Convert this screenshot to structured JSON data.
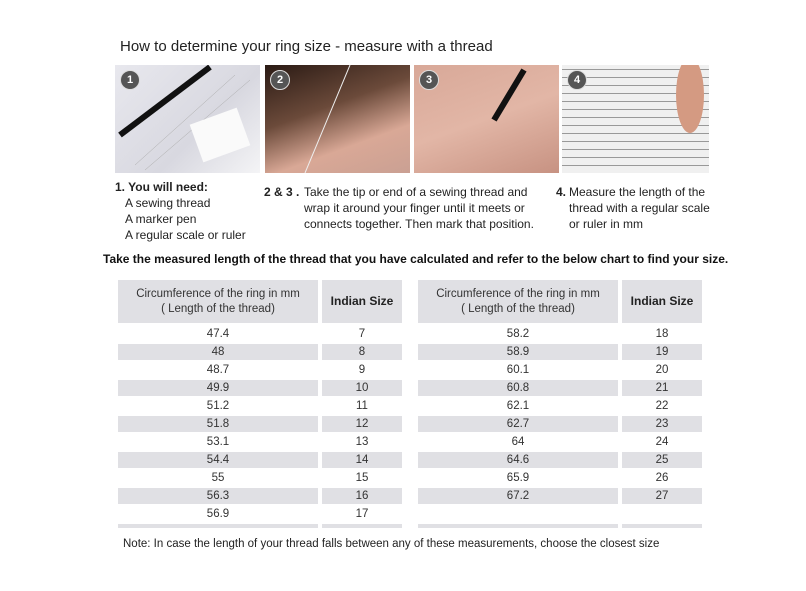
{
  "title": "How to determine your ring size - measure with a thread",
  "photos": [
    {
      "step": "1",
      "alt": "ruler, pen and thread"
    },
    {
      "step": "2",
      "alt": "wrapping thread around finger"
    },
    {
      "step": "3",
      "alt": "marking thread with pen"
    },
    {
      "step": "4",
      "alt": "measuring thread on ruler"
    }
  ],
  "steps": {
    "one": {
      "heading": "1. You will need:",
      "items": [
        "A sewing thread",
        "A marker pen",
        "A regular scale or ruler"
      ]
    },
    "two_three": {
      "label": "2 & 3 .",
      "lines": [
        "Take the tip or end of a sewing thread and",
        "wrap it around your finger until it meets or",
        "connects together. Then mark that position."
      ]
    },
    "four": {
      "label": "4.",
      "lines": [
        "Measure the length of the",
        "thread with a regular scale",
        "or ruler in mm"
      ]
    }
  },
  "instruction": "Take the measured length of the thread that you have calculated and refer to the below chart to find your size.",
  "table": {
    "header_circ_line1": "Circumference of the ring in mm",
    "header_circ_line2": "( Length of the thread)",
    "header_size": "Indian Size",
    "left": [
      [
        "47.4",
        "7"
      ],
      [
        "48",
        "8"
      ],
      [
        "48.7",
        "9"
      ],
      [
        "49.9",
        "10"
      ],
      [
        "51.2",
        "11"
      ],
      [
        "51.8",
        "12"
      ],
      [
        "53.1",
        "13"
      ],
      [
        "54.4",
        "14"
      ],
      [
        "55",
        "15"
      ],
      [
        "56.3",
        "16"
      ],
      [
        "56.9",
        "17"
      ]
    ],
    "right": [
      [
        "58.2",
        "18"
      ],
      [
        "58.9",
        "19"
      ],
      [
        "60.1",
        "20"
      ],
      [
        "60.8",
        "21"
      ],
      [
        "62.1",
        "22"
      ],
      [
        "62.7",
        "23"
      ],
      [
        "64",
        "24"
      ],
      [
        "64.6",
        "25"
      ],
      [
        "65.9",
        "26"
      ],
      [
        "67.2",
        "27"
      ]
    ]
  },
  "note": "Note: In case the length of your thread falls between any of these measurements, choose the closest size"
}
